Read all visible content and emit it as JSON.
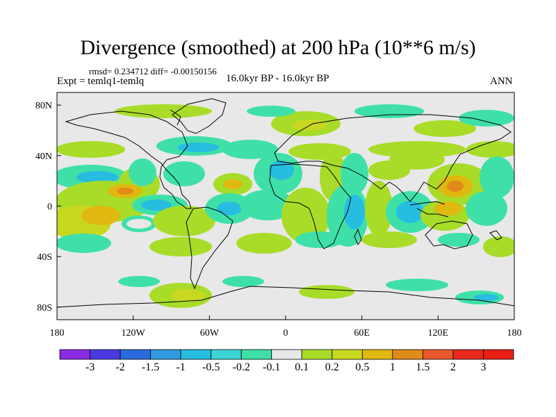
{
  "title": "Divergence (smoothed) at 200 hPa (10**6 m/s)",
  "stats": {
    "rmsd_line": "rmsd= 0.234712 diff= -0.00150156"
  },
  "experiment": "Expt = temlq1-temlq",
  "period": "16.0kyr BP - 16.0kyr BP",
  "season": "ANN",
  "map": {
    "projection": "cylindrical equidistant",
    "lon_range": [
      -180,
      180
    ],
    "lat_range": [
      -90,
      90
    ],
    "x_ticks": [
      "180",
      "120W",
      "60W",
      "0",
      "60E",
      "120E",
      "180"
    ],
    "y_ticks": [
      "80N",
      "40N",
      "0",
      "40S",
      "80S"
    ],
    "background_color": "#e8e8e8"
  },
  "colorbar": {
    "labels": [
      "-3",
      "-2",
      "-1.5",
      "-1",
      "-0.5",
      "-0.2",
      "-0.1",
      "0.1",
      "0.2",
      "0.5",
      "1",
      "1.5",
      "2",
      "3"
    ],
    "colors": [
      "#8a2be2",
      "#4a3ae0",
      "#2a6adc",
      "#2f9ae0",
      "#27bde0",
      "#3fd4d4",
      "#3fe0a8",
      "#e8e8e8",
      "#a8dc28",
      "#c8d820",
      "#e0b810",
      "#e08a18",
      "#e8582a",
      "#e6281e",
      "#e61e14"
    ]
  }
}
